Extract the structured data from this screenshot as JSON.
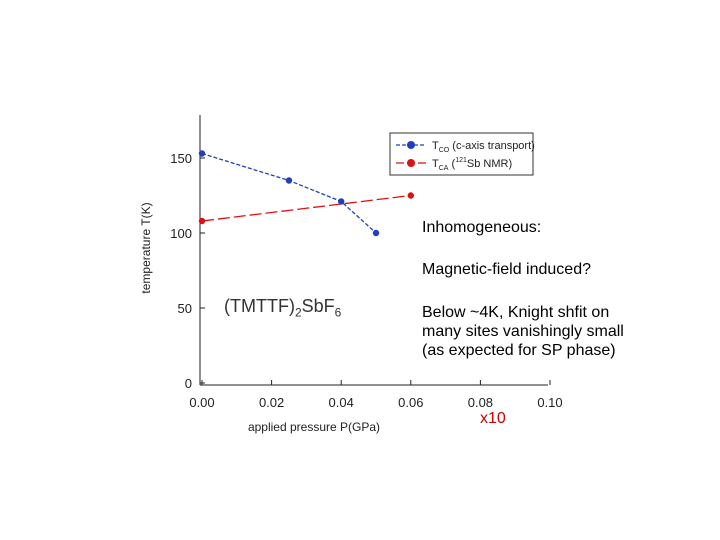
{
  "chart_data": {
    "type": "line",
    "xlabel": "applied pressure P(GPa)",
    "ylabel": "temperature T(K)",
    "xlim": [
      0.0,
      0.1
    ],
    "ylim": [
      0,
      180
    ],
    "x_ticks": [
      "0.00",
      "0.02",
      "0.04",
      "0.06",
      "0.08",
      "0.10"
    ],
    "y_ticks": [
      "0",
      "50",
      "100",
      "150"
    ],
    "series": [
      {
        "name": "T_CO (c-axis transport)",
        "color": "#1f3fbf",
        "line_style": "dashed",
        "x": [
          0.0,
          0.025,
          0.04,
          0.05
        ],
        "y": [
          153,
          135,
          121,
          100
        ]
      },
      {
        "name": "T_CA (121Sb NMR)",
        "color": "#dd1111",
        "line_style": "dashed",
        "x": [
          0.0,
          0.06
        ],
        "y": [
          108,
          125
        ]
      }
    ],
    "legend": {
      "placement": "top-right",
      "entries": [
        {
          "main": "T",
          "sub": "CO",
          "rest": " (c-axis transport)"
        },
        {
          "main": "T",
          "sub": "CA",
          "pre": " (",
          "sup": "121",
          "rest": "Sb NMR)"
        }
      ]
    },
    "compound_label": {
      "a": "(TMTTF)",
      "b": "2",
      "c": "SbF",
      "d": "6"
    }
  },
  "annotations": {
    "inhomogeneous": "Inhomogeneous:",
    "magnetic": "Magnetic-field induced?",
    "below": "Below ~4K, Knight shfit on\nmany sites vanishingly small\n(as expected for SP phase)",
    "x10": "x10"
  }
}
